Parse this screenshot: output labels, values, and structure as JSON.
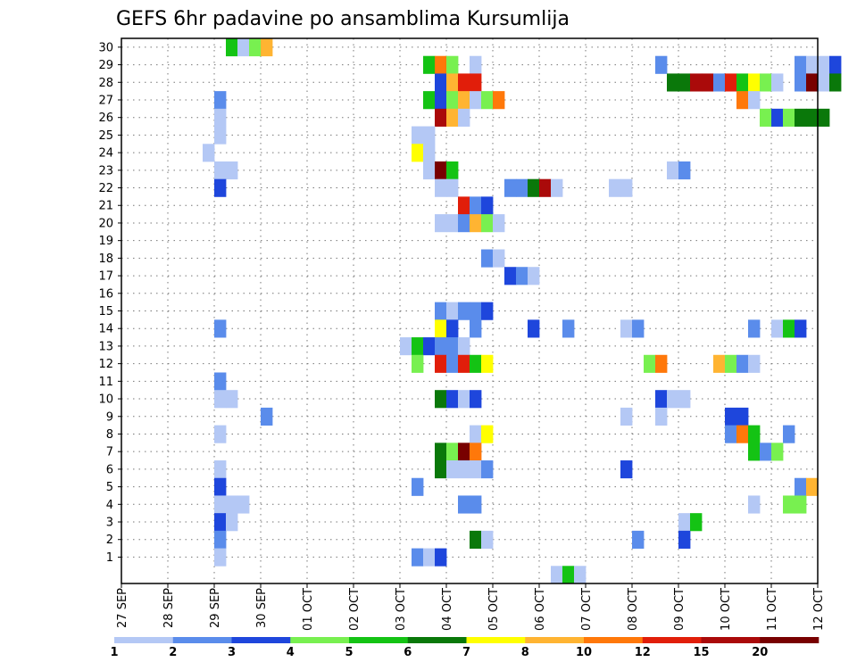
{
  "chart_data": {
    "type": "heatmap",
    "title": "GEFS 6hr padavine po ansamblima Kursumlija",
    "y_categories": [
      "1",
      "2",
      "3",
      "4",
      "5",
      "6",
      "7",
      "8",
      "9",
      "10",
      "11",
      "12",
      "13",
      "14",
      "15",
      "16",
      "17",
      "18",
      "19",
      "20",
      "21",
      "22",
      "23",
      "24",
      "25",
      "26",
      "27",
      "28",
      "29",
      "30"
    ],
    "x_tick_labels": [
      "27 SEP",
      "28 SEP",
      "29 SEP",
      "30 SEP",
      "01 OCT",
      "02 OCT",
      "03 OCT",
      "04 OCT",
      "05 OCT",
      "06 OCT",
      "07 OCT",
      "08 OCT",
      "09 OCT",
      "10 OCT",
      "11 OCT",
      "12 OCT"
    ],
    "x_range_days": [
      0,
      15
    ],
    "steps_per_day": 4,
    "grid": true,
    "legend": {
      "position": "bottom",
      "labels": [
        "1",
        "2",
        "3",
        "4",
        "5",
        "6",
        "7",
        "8",
        "10",
        "12",
        "15",
        "20"
      ],
      "colors": [
        "#b4c8f5",
        "#5a8ceb",
        "#1e46dc",
        "#78f050",
        "#14c314",
        "#0a780a",
        "#ffff00",
        "#ffb432",
        "#ff780a",
        "#e11e0a",
        "#aa0a0a",
        "#780000"
      ]
    },
    "cells": [
      {
        "member": 30,
        "step": 9,
        "level": 5
      },
      {
        "member": 30,
        "step": 10,
        "level": 1
      },
      {
        "member": 30,
        "step": 11,
        "level": 4
      },
      {
        "member": 30,
        "step": 12,
        "level": 8
      },
      {
        "member": 29,
        "step": 26,
        "level": 5
      },
      {
        "member": 29,
        "step": 27,
        "level": 9
      },
      {
        "member": 29,
        "step": 28,
        "level": 4
      },
      {
        "member": 29,
        "step": 30,
        "level": 1
      },
      {
        "member": 29,
        "step": 46,
        "level": 2
      },
      {
        "member": 29,
        "step": 58,
        "level": 2
      },
      {
        "member": 29,
        "step": 59,
        "level": 1
      },
      {
        "member": 29,
        "step": 60,
        "level": 1
      },
      {
        "member": 29,
        "step": 61,
        "level": 3
      },
      {
        "member": 28,
        "step": 27,
        "level": 3
      },
      {
        "member": 28,
        "step": 28,
        "level": 8
      },
      {
        "member": 28,
        "step": 29,
        "level": 10
      },
      {
        "member": 28,
        "step": 30,
        "level": 10
      },
      {
        "member": 28,
        "step": 47,
        "level": 6
      },
      {
        "member": 28,
        "step": 48,
        "level": 6
      },
      {
        "member": 28,
        "step": 49,
        "level": 11
      },
      {
        "member": 28,
        "step": 50,
        "level": 11
      },
      {
        "member": 28,
        "step": 51,
        "level": 2
      },
      {
        "member": 28,
        "step": 52,
        "level": 10
      },
      {
        "member": 28,
        "step": 53,
        "level": 5
      },
      {
        "member": 28,
        "step": 54,
        "level": 7
      },
      {
        "member": 28,
        "step": 55,
        "level": 4
      },
      {
        "member": 28,
        "step": 56,
        "level": 1
      },
      {
        "member": 28,
        "step": 58,
        "level": 2
      },
      {
        "member": 28,
        "step": 59,
        "level": 12
      },
      {
        "member": 28,
        "step": 60,
        "level": 1
      },
      {
        "member": 28,
        "step": 61,
        "level": 6
      },
      {
        "member": 27,
        "step": 8,
        "level": 2
      },
      {
        "member": 27,
        "step": 26,
        "level": 5
      },
      {
        "member": 27,
        "step": 27,
        "level": 3
      },
      {
        "member": 27,
        "step": 28,
        "level": 4
      },
      {
        "member": 27,
        "step": 29,
        "level": 8
      },
      {
        "member": 27,
        "step": 30,
        "level": 1
      },
      {
        "member": 27,
        "step": 31,
        "level": 4
      },
      {
        "member": 27,
        "step": 32,
        "level": 9
      },
      {
        "member": 27,
        "step": 53,
        "level": 9
      },
      {
        "member": 27,
        "step": 54,
        "level": 1
      },
      {
        "member": 26,
        "step": 8,
        "level": 1
      },
      {
        "member": 26,
        "step": 27,
        "level": 11
      },
      {
        "member": 26,
        "step": 28,
        "level": 8
      },
      {
        "member": 26,
        "step": 29,
        "level": 1
      },
      {
        "member": 26,
        "step": 55,
        "level": 4
      },
      {
        "member": 26,
        "step": 56,
        "level": 3
      },
      {
        "member": 26,
        "step": 57,
        "level": 4
      },
      {
        "member": 26,
        "step": 58,
        "level": 6
      },
      {
        "member": 26,
        "step": 59,
        "level": 6
      },
      {
        "member": 26,
        "step": 60,
        "level": 6
      },
      {
        "member": 25,
        "step": 8,
        "level": 1
      },
      {
        "member": 25,
        "step": 25,
        "level": 1
      },
      {
        "member": 25,
        "step": 26,
        "level": 1
      },
      {
        "member": 24,
        "step": 7,
        "level": 1
      },
      {
        "member": 24,
        "step": 25,
        "level": 7
      },
      {
        "member": 24,
        "step": 26,
        "level": 1
      },
      {
        "member": 23,
        "step": 8,
        "level": 1
      },
      {
        "member": 23,
        "step": 9,
        "level": 1
      },
      {
        "member": 23,
        "step": 26,
        "level": 1
      },
      {
        "member": 23,
        "step": 27,
        "level": 12
      },
      {
        "member": 23,
        "step": 28,
        "level": 5
      },
      {
        "member": 23,
        "step": 47,
        "level": 1
      },
      {
        "member": 23,
        "step": 48,
        "level": 2
      },
      {
        "member": 22,
        "step": 8,
        "level": 3
      },
      {
        "member": 22,
        "step": 27,
        "level": 1
      },
      {
        "member": 22,
        "step": 28,
        "level": 1
      },
      {
        "member": 22,
        "step": 33,
        "level": 2
      },
      {
        "member": 22,
        "step": 34,
        "level": 2
      },
      {
        "member": 22,
        "step": 35,
        "level": 6
      },
      {
        "member": 22,
        "step": 36,
        "level": 11
      },
      {
        "member": 22,
        "step": 37,
        "level": 1
      },
      {
        "member": 22,
        "step": 42,
        "level": 1
      },
      {
        "member": 22,
        "step": 43,
        "level": 1
      },
      {
        "member": 21,
        "step": 29,
        "level": 10
      },
      {
        "member": 21,
        "step": 30,
        "level": 2
      },
      {
        "member": 21,
        "step": 31,
        "level": 3
      },
      {
        "member": 20,
        "step": 27,
        "level": 1
      },
      {
        "member": 20,
        "step": 28,
        "level": 1
      },
      {
        "member": 20,
        "step": 29,
        "level": 2
      },
      {
        "member": 20,
        "step": 30,
        "level": 8
      },
      {
        "member": 20,
        "step": 31,
        "level": 4
      },
      {
        "member": 20,
        "step": 32,
        "level": 1
      },
      {
        "member": 18,
        "step": 31,
        "level": 2
      },
      {
        "member": 18,
        "step": 32,
        "level": 1
      },
      {
        "member": 17,
        "step": 33,
        "level": 3
      },
      {
        "member": 17,
        "step": 34,
        "level": 2
      },
      {
        "member": 17,
        "step": 35,
        "level": 1
      },
      {
        "member": 15,
        "step": 27,
        "level": 2
      },
      {
        "member": 15,
        "step": 28,
        "level": 1
      },
      {
        "member": 15,
        "step": 29,
        "level": 2
      },
      {
        "member": 15,
        "step": 30,
        "level": 2
      },
      {
        "member": 15,
        "step": 31,
        "level": 3
      },
      {
        "member": 14,
        "step": 8,
        "level": 2
      },
      {
        "member": 14,
        "step": 27,
        "level": 7
      },
      {
        "member": 14,
        "step": 28,
        "level": 3
      },
      {
        "member": 14,
        "step": 30,
        "level": 2
      },
      {
        "member": 14,
        "step": 35,
        "level": 3
      },
      {
        "member": 14,
        "step": 38,
        "level": 2
      },
      {
        "member": 14,
        "step": 43,
        "level": 1
      },
      {
        "member": 14,
        "step": 44,
        "level": 2
      },
      {
        "member": 14,
        "step": 54,
        "level": 2
      },
      {
        "member": 14,
        "step": 56,
        "level": 1
      },
      {
        "member": 14,
        "step": 57,
        "level": 5
      },
      {
        "member": 14,
        "step": 58,
        "level": 3
      },
      {
        "member": 13,
        "step": 24,
        "level": 1
      },
      {
        "member": 13,
        "step": 25,
        "level": 5
      },
      {
        "member": 13,
        "step": 26,
        "level": 3
      },
      {
        "member": 13,
        "step": 27,
        "level": 2
      },
      {
        "member": 13,
        "step": 28,
        "level": 2
      },
      {
        "member": 13,
        "step": 29,
        "level": 1
      },
      {
        "member": 12,
        "step": 25,
        "level": 4
      },
      {
        "member": 12,
        "step": 27,
        "level": 10
      },
      {
        "member": 12,
        "step": 28,
        "level": 2
      },
      {
        "member": 12,
        "step": 29,
        "level": 10
      },
      {
        "member": 12,
        "step": 30,
        "level": 5
      },
      {
        "member": 12,
        "step": 31,
        "level": 7
      },
      {
        "member": 12,
        "step": 45,
        "level": 4
      },
      {
        "member": 12,
        "step": 46,
        "level": 9
      },
      {
        "member": 12,
        "step": 51,
        "level": 8
      },
      {
        "member": 12,
        "step": 52,
        "level": 4
      },
      {
        "member": 12,
        "step": 53,
        "level": 2
      },
      {
        "member": 12,
        "step": 54,
        "level": 1
      },
      {
        "member": 11,
        "step": 8,
        "level": 2
      },
      {
        "member": 10,
        "step": 8,
        "level": 1
      },
      {
        "member": 10,
        "step": 9,
        "level": 1
      },
      {
        "member": 10,
        "step": 27,
        "level": 6
      },
      {
        "member": 10,
        "step": 28,
        "level": 3
      },
      {
        "member": 10,
        "step": 29,
        "level": 1
      },
      {
        "member": 10,
        "step": 30,
        "level": 3
      },
      {
        "member": 10,
        "step": 46,
        "level": 3
      },
      {
        "member": 10,
        "step": 47,
        "level": 1
      },
      {
        "member": 10,
        "step": 48,
        "level": 1
      },
      {
        "member": 9,
        "step": 12,
        "level": 2
      },
      {
        "member": 9,
        "step": 43,
        "level": 1
      },
      {
        "member": 9,
        "step": 46,
        "level": 1
      },
      {
        "member": 9,
        "step": 52,
        "level": 3
      },
      {
        "member": 9,
        "step": 53,
        "level": 3
      },
      {
        "member": 8,
        "step": 8,
        "level": 1
      },
      {
        "member": 8,
        "step": 30,
        "level": 1
      },
      {
        "member": 8,
        "step": 31,
        "level": 7
      },
      {
        "member": 8,
        "step": 52,
        "level": 2
      },
      {
        "member": 8,
        "step": 53,
        "level": 9
      },
      {
        "member": 8,
        "step": 54,
        "level": 5
      },
      {
        "member": 8,
        "step": 57,
        "level": 2
      },
      {
        "member": 7,
        "step": 27,
        "level": 6
      },
      {
        "member": 7,
        "step": 28,
        "level": 4
      },
      {
        "member": 7,
        "step": 29,
        "level": 12
      },
      {
        "member": 7,
        "step": 30,
        "level": 9
      },
      {
        "member": 7,
        "step": 54,
        "level": 5
      },
      {
        "member": 7,
        "step": 55,
        "level": 2
      },
      {
        "member": 7,
        "step": 56,
        "level": 4
      },
      {
        "member": 6,
        "step": 8,
        "level": 1
      },
      {
        "member": 6,
        "step": 27,
        "level": 6
      },
      {
        "member": 6,
        "step": 28,
        "level": 1
      },
      {
        "member": 6,
        "step": 29,
        "level": 1
      },
      {
        "member": 6,
        "step": 30,
        "level": 1
      },
      {
        "member": 6,
        "step": 31,
        "level": 2
      },
      {
        "member": 6,
        "step": 43,
        "level": 3
      },
      {
        "member": 5,
        "step": 8,
        "level": 3
      },
      {
        "member": 5,
        "step": 25,
        "level": 2
      },
      {
        "member": 5,
        "step": 58,
        "level": 2
      },
      {
        "member": 5,
        "step": 59,
        "level": 8
      },
      {
        "member": 4,
        "step": 8,
        "level": 1
      },
      {
        "member": 4,
        "step": 9,
        "level": 1
      },
      {
        "member": 4,
        "step": 10,
        "level": 1
      },
      {
        "member": 4,
        "step": 29,
        "level": 2
      },
      {
        "member": 4,
        "step": 30,
        "level": 2
      },
      {
        "member": 4,
        "step": 54,
        "level": 1
      },
      {
        "member": 4,
        "step": 57,
        "level": 4
      },
      {
        "member": 4,
        "step": 58,
        "level": 4
      },
      {
        "member": 3,
        "step": 8,
        "level": 3
      },
      {
        "member": 3,
        "step": 9,
        "level": 1
      },
      {
        "member": 3,
        "step": 48,
        "level": 1
      },
      {
        "member": 3,
        "step": 49,
        "level": 5
      },
      {
        "member": 2,
        "step": 8,
        "level": 2
      },
      {
        "member": 2,
        "step": 30,
        "level": 6
      },
      {
        "member": 2,
        "step": 31,
        "level": 1
      },
      {
        "member": 2,
        "step": 44,
        "level": 2
      },
      {
        "member": 2,
        "step": 48,
        "level": 3
      },
      {
        "member": 1,
        "step": 8,
        "level": 1
      },
      {
        "member": 1,
        "step": 25,
        "level": 2
      },
      {
        "member": 1,
        "step": 26,
        "level": 1
      },
      {
        "member": 1,
        "step": 27,
        "level": 3
      },
      {
        "member": 0,
        "step": 37,
        "level": 1
      },
      {
        "member": 0,
        "step": 38,
        "level": 5
      },
      {
        "member": 0,
        "step": 39,
        "level": 1
      }
    ]
  }
}
